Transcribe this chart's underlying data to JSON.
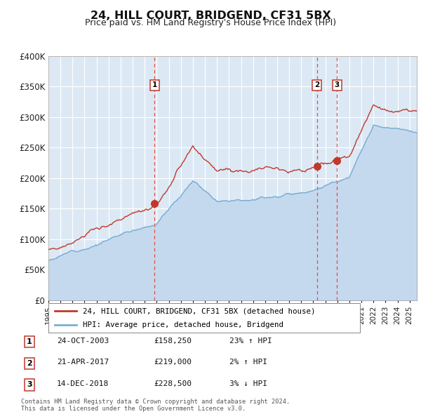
{
  "title": "24, HILL COURT, BRIDGEND, CF31 5BX",
  "subtitle": "Price paid vs. HM Land Registry's House Price Index (HPI)",
  "bg_color": "#dce9f5",
  "hpi_line_color": "#7bafd4",
  "hpi_fill_color": "#c5d9ee",
  "price_line_color": "#c0392b",
  "marker_color": "#c0392b",
  "vline_color": "#e74c3c",
  "ytick_labels": [
    "£0",
    "£50K",
    "£100K",
    "£150K",
    "£200K",
    "£250K",
    "£300K",
    "£350K",
    "£400K"
  ],
  "ytick_values": [
    0,
    50000,
    100000,
    150000,
    200000,
    250000,
    300000,
    350000,
    400000
  ],
  "ylim": [
    0,
    400000
  ],
  "xlim_start": 1995.0,
  "xlim_end": 2025.6,
  "transaction_dates": [
    2003.81,
    2017.3,
    2018.96
  ],
  "transaction_prices": [
    158250,
    219000,
    228500
  ],
  "transaction_labels": [
    "1",
    "2",
    "3"
  ],
  "legend_line1": "24, HILL COURT, BRIDGEND, CF31 5BX (detached house)",
  "legend_line2": "HPI: Average price, detached house, Bridgend",
  "table_rows": [
    [
      "1",
      "24-OCT-2003",
      "£158,250",
      "23% ↑ HPI"
    ],
    [
      "2",
      "21-APR-2017",
      "£219,000",
      "2% ↑ HPI"
    ],
    [
      "3",
      "14-DEC-2018",
      "£228,500",
      "3% ↓ HPI"
    ]
  ],
  "footer": "Contains HM Land Registry data © Crown copyright and database right 2024.\nThis data is licensed under the Open Government Licence v3.0."
}
